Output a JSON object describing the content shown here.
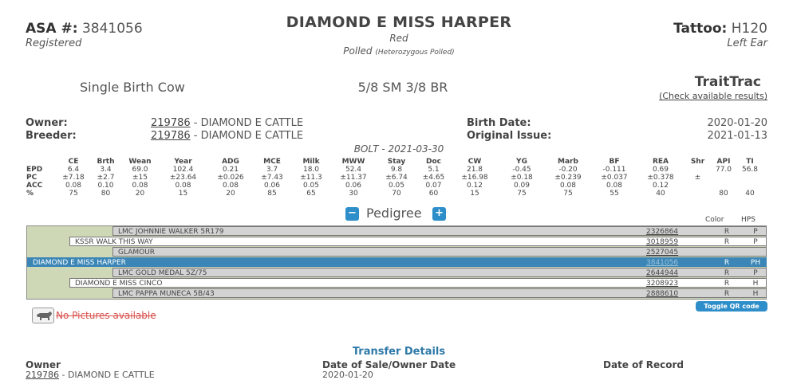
{
  "header": {
    "asa_label": "ASA #:",
    "asa_number": "3841056",
    "registration_status": "Registered",
    "animal_name": "DIAMOND E MISS HARPER",
    "color": "Red",
    "polled_status": "Polled",
    "polled_detail": "(Heterozygous Polled)",
    "tattoo_label": "Tattoo:",
    "tattoo_value": "H120",
    "tattoo_location": "Left Ear"
  },
  "summary": {
    "birth_type": "Single Birth Cow",
    "breed": "5/8 SM 3/8 BR",
    "traittrac_title": "TraitTrac",
    "traittrac_link": "(Check available results)"
  },
  "owner_block": {
    "owner_label": "Owner:",
    "owner_id": "219786",
    "owner_name": "- DIAMOND E CATTLE",
    "breeder_label": "Breeder:",
    "breeder_id": "219786",
    "breeder_name": "- DIAMOND E CATTLE",
    "birth_date_label": "Birth Date:",
    "birth_date": "2020-01-20",
    "original_issue_label": "Original Issue:",
    "original_issue": "2021-01-13"
  },
  "epd": {
    "caption": "BOLT - 2021-03-30",
    "columns": [
      "CE",
      "Brth",
      "Wean",
      "Year",
      "ADG",
      "MCE",
      "Milk",
      "MWW",
      "Stay",
      "Doc",
      "CW",
      "YG",
      "Marb",
      "BF",
      "REA",
      "Shr",
      "API",
      "TI"
    ],
    "rows": [
      {
        "label": "EPD",
        "values": [
          "6.4",
          "3.4",
          "69.0",
          "102.4",
          "0.21",
          "3.7",
          "18.0",
          "52.4",
          "9.8",
          "5.1",
          "21.8",
          "-0.45",
          "-0.20",
          "-0.111",
          "0.69",
          "",
          "77.0",
          "56.8"
        ]
      },
      {
        "label": "PC",
        "values": [
          "±7.18",
          "±2.7",
          "±15",
          "±23.64",
          "±0.026",
          "±7.43",
          "±11.3",
          "±11.37",
          "±6.74",
          "±4.65",
          "±16.98",
          "±0.18",
          "±0.239",
          "±0.037",
          "±0.378",
          "±",
          "",
          ""
        ]
      },
      {
        "label": "ACC",
        "values": [
          "0.08",
          "0.10",
          "0.08",
          "0.08",
          "0.08",
          "0.06",
          "0.05",
          "0.06",
          "0.05",
          "0.07",
          "0.12",
          "0.09",
          "0.08",
          "0.08",
          "0.12",
          "",
          "",
          ""
        ]
      },
      {
        "label": "%",
        "values": [
          "75",
          "80",
          "20",
          "15",
          "20",
          "85",
          "65",
          "30",
          "70",
          "60",
          "15",
          "75",
          "75",
          "55",
          "40",
          "",
          "80",
          "40"
        ]
      }
    ]
  },
  "pedigree": {
    "title": "Pedigree",
    "collapse_symbol": "−",
    "expand_symbol": "+",
    "color_header": "Color",
    "hps_header": "HPS",
    "rows": [
      {
        "name": "LMC JOHNNIE WALKER 5R179",
        "number": "2326864",
        "color": "R",
        "hps": "P"
      },
      {
        "name": "KSSR WALK THIS WAY",
        "number": "3018959",
        "color": "R",
        "hps": "P"
      },
      {
        "name": "GLAMOUR",
        "number": "2527045",
        "color": "",
        "hps": ""
      },
      {
        "name": "DIAMOND E MISS HARPER",
        "number": "3841056",
        "color": "R",
        "hps": "PH"
      },
      {
        "name": "LMC GOLD MEDAL 5Z/75",
        "number": "2644944",
        "color": "R",
        "hps": "P"
      },
      {
        "name": "DIAMOND E MISS CINCO",
        "number": "3208923",
        "color": "R",
        "hps": "H"
      },
      {
        "name": "LMC PAPPA MUNECA 5B/43",
        "number": "2888610",
        "color": "R",
        "hps": "H"
      }
    ]
  },
  "qr_button": "Toggle QR code",
  "pictures": {
    "icon": "cow-icon",
    "text": "No Pictures available"
  },
  "transfer": {
    "title": "Transfer Details",
    "owner_label": "Owner",
    "owner_id": "219786",
    "owner_name": "- DIAMOND E CATTLE",
    "sale_label": "Date of Sale/Owner Date",
    "sale_date": "2020-01-20",
    "record_label": "Date of Record"
  }
}
